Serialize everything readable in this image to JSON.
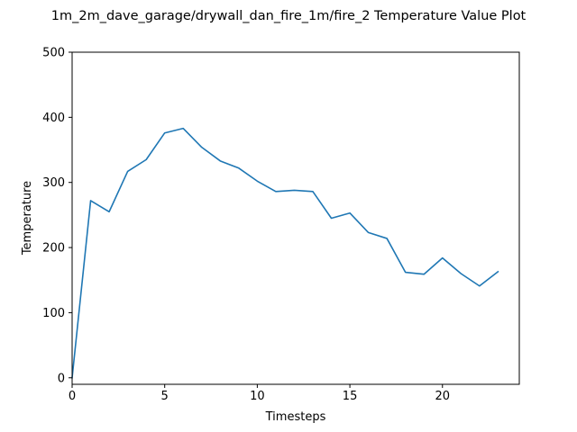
{
  "chart_data": {
    "type": "line",
    "title": "1m_2m_dave_garage/drywall_dan_fire_1m/fire_2 Temperature Value Plot",
    "xlabel": "Timesteps",
    "ylabel": "Temperature",
    "xlim": [
      0,
      24.15
    ],
    "ylim": [
      -10,
      500
    ],
    "xticks": [
      0,
      5,
      10,
      15,
      20
    ],
    "yticks": [
      0,
      100,
      200,
      300,
      400,
      500
    ],
    "grid": false,
    "series": [
      {
        "color": "#1f77b4",
        "x": [
          0,
          1,
          2,
          3,
          4,
          5,
          6,
          7,
          8,
          9,
          10,
          11,
          12,
          13,
          14,
          15,
          16,
          17,
          18,
          19,
          20,
          21,
          22,
          23
        ],
        "values": [
          0,
          272,
          255,
          317,
          335,
          376,
          383,
          354,
          333,
          322,
          302,
          286,
          288,
          286,
          245,
          253,
          223,
          214,
          162,
          159,
          184,
          160,
          141,
          163
        ]
      }
    ]
  }
}
